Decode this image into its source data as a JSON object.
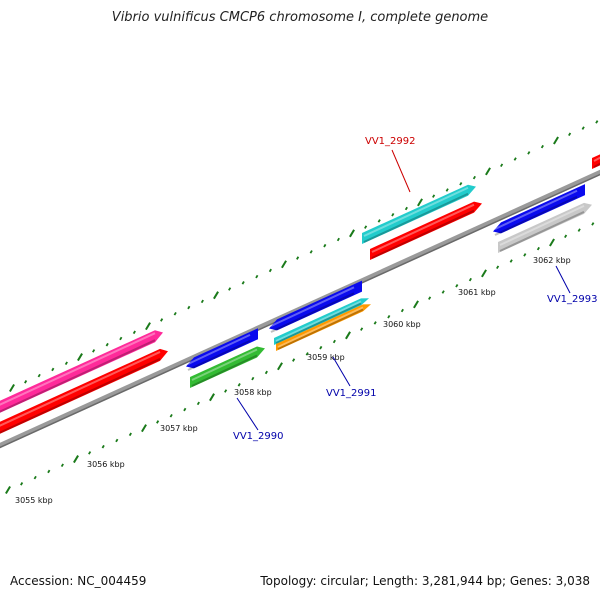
{
  "title": "Vibrio vulnificus CMCP6 chromosome I, complete genome",
  "footer": {
    "accession": "Accession: NC_004459",
    "summary": "Topology: circular; Length: 3,281,944 bp; Genes: 3,038"
  },
  "scale_labels": [
    "3055 kbp",
    "3056 kbp",
    "3057 kbp",
    "3058 kbp",
    "3059 kbp",
    "3060 kbp",
    "3061 kbp",
    "3062 kbp"
  ],
  "gene_labels": [
    {
      "text": "VV1_2992",
      "color": "#cc0000"
    },
    {
      "text": "VV1_2993",
      "color": "#0000aa"
    },
    {
      "text": "VV1_2991",
      "color": "#0000aa"
    },
    {
      "text": "VV1_2990",
      "color": "#0000aa"
    }
  ],
  "colors": {
    "backbone": "#808080",
    "tick": "#1a7a1a",
    "red": "#ff0000",
    "pink": "#ff2a9a",
    "blue": "#0a0aee",
    "green": "#33bb33",
    "cyan": "#22cccc",
    "orange": "#ff9900",
    "gray": "#c8c8c8"
  }
}
